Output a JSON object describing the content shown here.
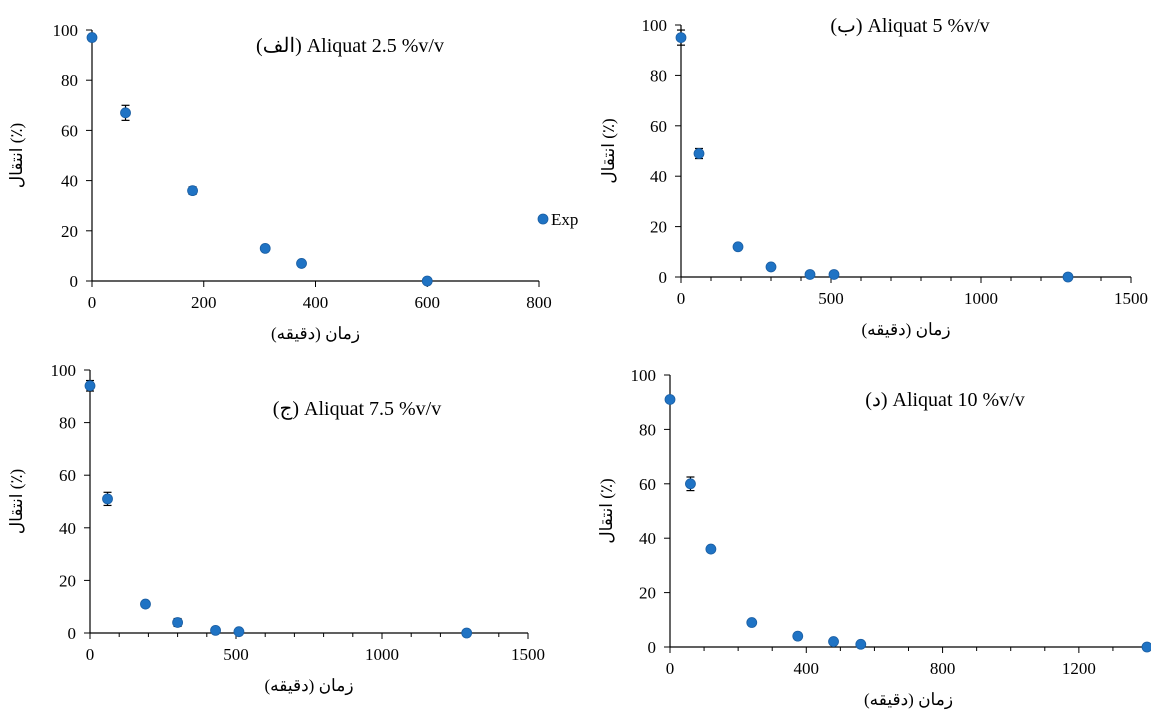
{
  "figure": {
    "colors": {
      "marker": "#1f73c4",
      "marker_edge": "#1a5ea3",
      "axis": "#000000",
      "error_bar": "#000000"
    }
  },
  "chart_data": [
    {
      "type": "scatter",
      "title": "(الف) Aliquat 2.5 %v/v",
      "xlabel": "زمان (دقیقه)",
      "ylabel": "انتقال (٪)",
      "xlim": [
        0,
        800
      ],
      "ylim": [
        0,
        100
      ],
      "xticks": [
        0,
        200,
        400,
        600,
        800
      ],
      "yticks": [
        0,
        20,
        40,
        60,
        80,
        100
      ],
      "grid": false,
      "legend": "right",
      "series": [
        {
          "name": "Exp",
          "x": [
            0,
            60,
            180,
            310,
            375,
            600
          ],
          "y": [
            97,
            67,
            36,
            13,
            7,
            0
          ],
          "yerr": [
            0,
            3,
            1.5,
            0,
            0,
            0
          ]
        }
      ]
    },
    {
      "type": "scatter",
      "title": "(ب) Aliquat 5 %v/v",
      "xlabel": "زمان (دقیقه)",
      "ylabel": "انتقال (٪)",
      "xlim": [
        0,
        1500
      ],
      "ylim": [
        0,
        100
      ],
      "xticks": [
        0,
        500,
        1000,
        1500
      ],
      "yticks": [
        0,
        20,
        40,
        60,
        80,
        100
      ],
      "grid": false,
      "series": [
        {
          "x": [
            0,
            60,
            190,
            300,
            430,
            510,
            1290
          ],
          "y": [
            95,
            49,
            12,
            4,
            1,
            1,
            0
          ],
          "yerr": [
            3,
            2,
            0,
            1,
            0,
            0,
            0
          ]
        }
      ]
    },
    {
      "type": "scatter",
      "title": "(ج) Aliquat 7.5 %v/v",
      "xlabel": "زمان (دقیقه)",
      "ylabel": "انتقال (٪)",
      "xlim": [
        0,
        1500
      ],
      "ylim": [
        0,
        100
      ],
      "xticks": [
        0,
        500,
        1000,
        1500
      ],
      "yticks": [
        0,
        20,
        40,
        60,
        80,
        100
      ],
      "grid": false,
      "series": [
        {
          "x": [
            0,
            60,
            190,
            300,
            430,
            510,
            1290
          ],
          "y": [
            94,
            51,
            11,
            4,
            1,
            0.5,
            0
          ],
          "yerr": [
            2,
            2.5,
            0,
            1.5,
            0,
            0,
            0
          ]
        }
      ]
    },
    {
      "type": "scatter",
      "title": "(د) Aliquat 10 %v/v",
      "xlabel": "زمان (دقیقه)",
      "ylabel": "انتقال (٪)",
      "xlim": [
        0,
        1400
      ],
      "ylim": [
        0,
        100
      ],
      "xticks": [
        0,
        400,
        800,
        1200
      ],
      "yticks": [
        0,
        20,
        40,
        60,
        80,
        100
      ],
      "grid": false,
      "series": [
        {
          "x": [
            0,
            60,
            120,
            240,
            375,
            480,
            560,
            1400
          ],
          "y": [
            91,
            60,
            36,
            9,
            4,
            2,
            1,
            0
          ],
          "yerr": [
            0,
            2.5,
            1,
            1,
            1,
            0,
            0,
            0
          ]
        }
      ]
    }
  ]
}
